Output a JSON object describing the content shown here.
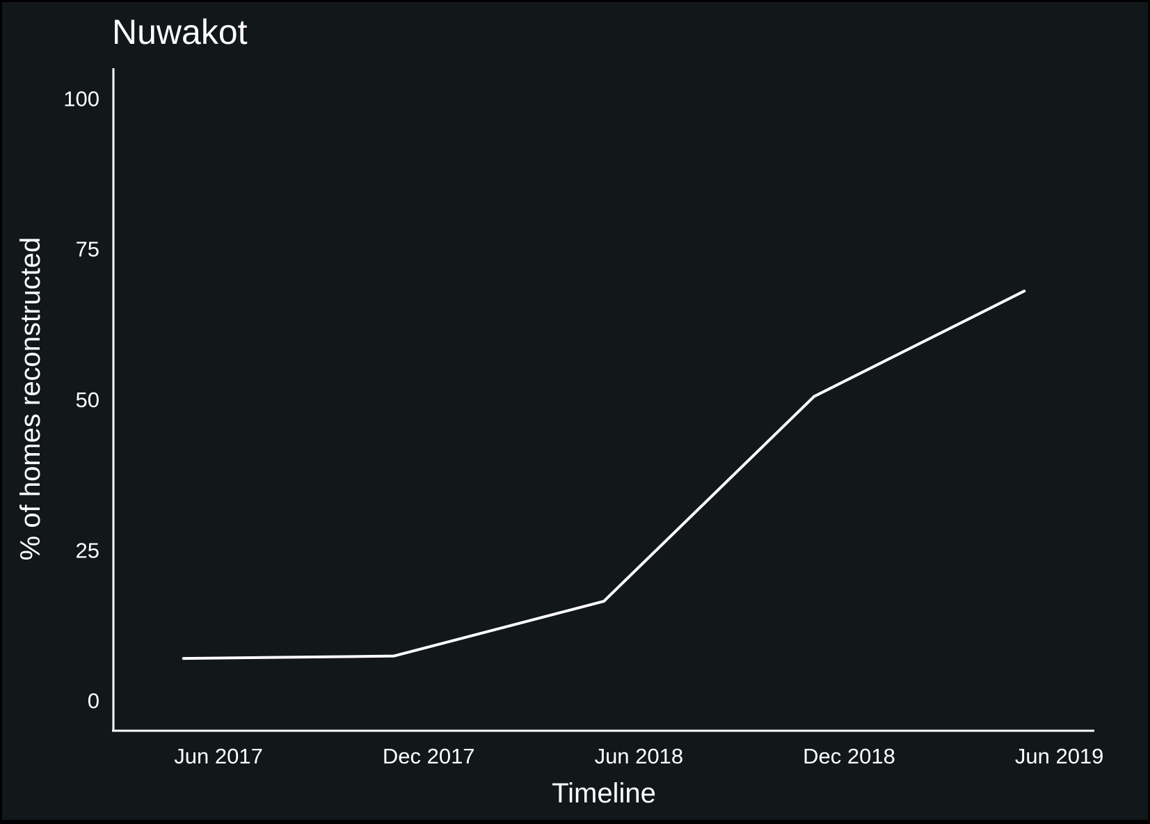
{
  "chart_data": {
    "type": "line",
    "title": "Nuwakot",
    "xlabel": "Timeline",
    "ylabel": "% of homes reconstructed",
    "x": [
      "2017-05",
      "2017-11",
      "2018-05",
      "2018-11",
      "2019-05"
    ],
    "y": [
      7,
      7.4,
      16.5,
      50.5,
      68
    ],
    "x_ticks": [
      {
        "label": "Jun 2017",
        "date": "2017-06"
      },
      {
        "label": "Dec 2017",
        "date": "2017-12"
      },
      {
        "label": "Jun 2018",
        "date": "2018-06"
      },
      {
        "label": "Dec 2018",
        "date": "2018-12"
      },
      {
        "label": "Jun 2019",
        "date": "2019-06"
      }
    ],
    "y_ticks": [
      0,
      25,
      50,
      75,
      100
    ],
    "ylim": [
      -5,
      105
    ],
    "xlim": [
      "2017-03",
      "2019-07"
    ],
    "grid": false,
    "colors": {
      "background": "#121719",
      "line": "#ffffff",
      "text": "#ffffff"
    }
  }
}
